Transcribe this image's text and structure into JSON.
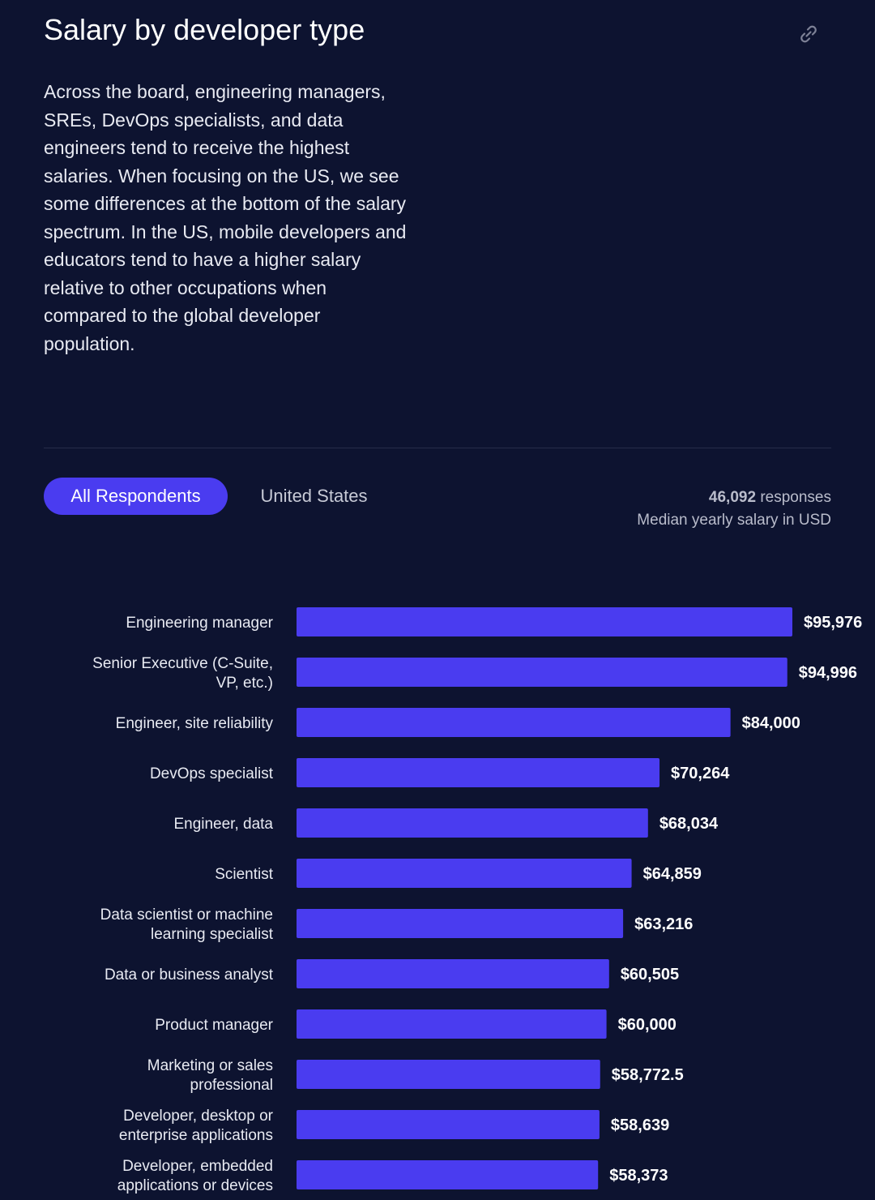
{
  "header": {
    "title": "Salary by developer type",
    "link_icon": "link-icon"
  },
  "description": "Across the board, engineering managers, SREs, DevOps specialists, and data engineers tend to receive the highest salaries. When focusing on the US, we see some differences at the bottom of the salary spectrum. In the US, mobile developers and educators tend to have a higher salary relative to other occupations when compared to the global developer population.",
  "tabs": [
    {
      "label": "All Respondents",
      "active": true
    },
    {
      "label": "United States",
      "active": false
    }
  ],
  "meta": {
    "responses_count": "46,092",
    "responses_word": "responses",
    "subtitle": "Median yearly salary in USD"
  },
  "colors": {
    "bar": "#4a3cf0",
    "background": "#0d1330"
  },
  "chart_data": {
    "type": "bar",
    "orientation": "horizontal",
    "title": "Salary by developer type",
    "xlabel": "Median yearly salary in USD",
    "xlim": [
      0,
      100000
    ],
    "categories": [
      [
        "Engineering manager"
      ],
      [
        "Senior Executive (C-Suite,",
        "VP, etc.)"
      ],
      [
        "Engineer, site reliability"
      ],
      [
        "DevOps specialist"
      ],
      [
        "Engineer, data"
      ],
      [
        "Scientist"
      ],
      [
        "Data scientist or machine",
        "learning specialist"
      ],
      [
        "Data or business analyst"
      ],
      [
        "Product manager"
      ],
      [
        "Marketing or sales",
        "professional"
      ],
      [
        "Developer, desktop or",
        "enterprise applications"
      ],
      [
        "Developer, embedded",
        "applications or devices"
      ]
    ],
    "values": [
      95976,
      94996,
      84000,
      70264,
      68034,
      64859,
      63216,
      60505,
      60000,
      58772.5,
      58639,
      58373
    ],
    "value_labels": [
      "$95,976",
      "$94,996",
      "$84,000",
      "$70,264",
      "$68,034",
      "$64,859",
      "$63,216",
      "$60,505",
      "$60,000",
      "$58,772.5",
      "$58,639",
      "$58,373"
    ]
  }
}
